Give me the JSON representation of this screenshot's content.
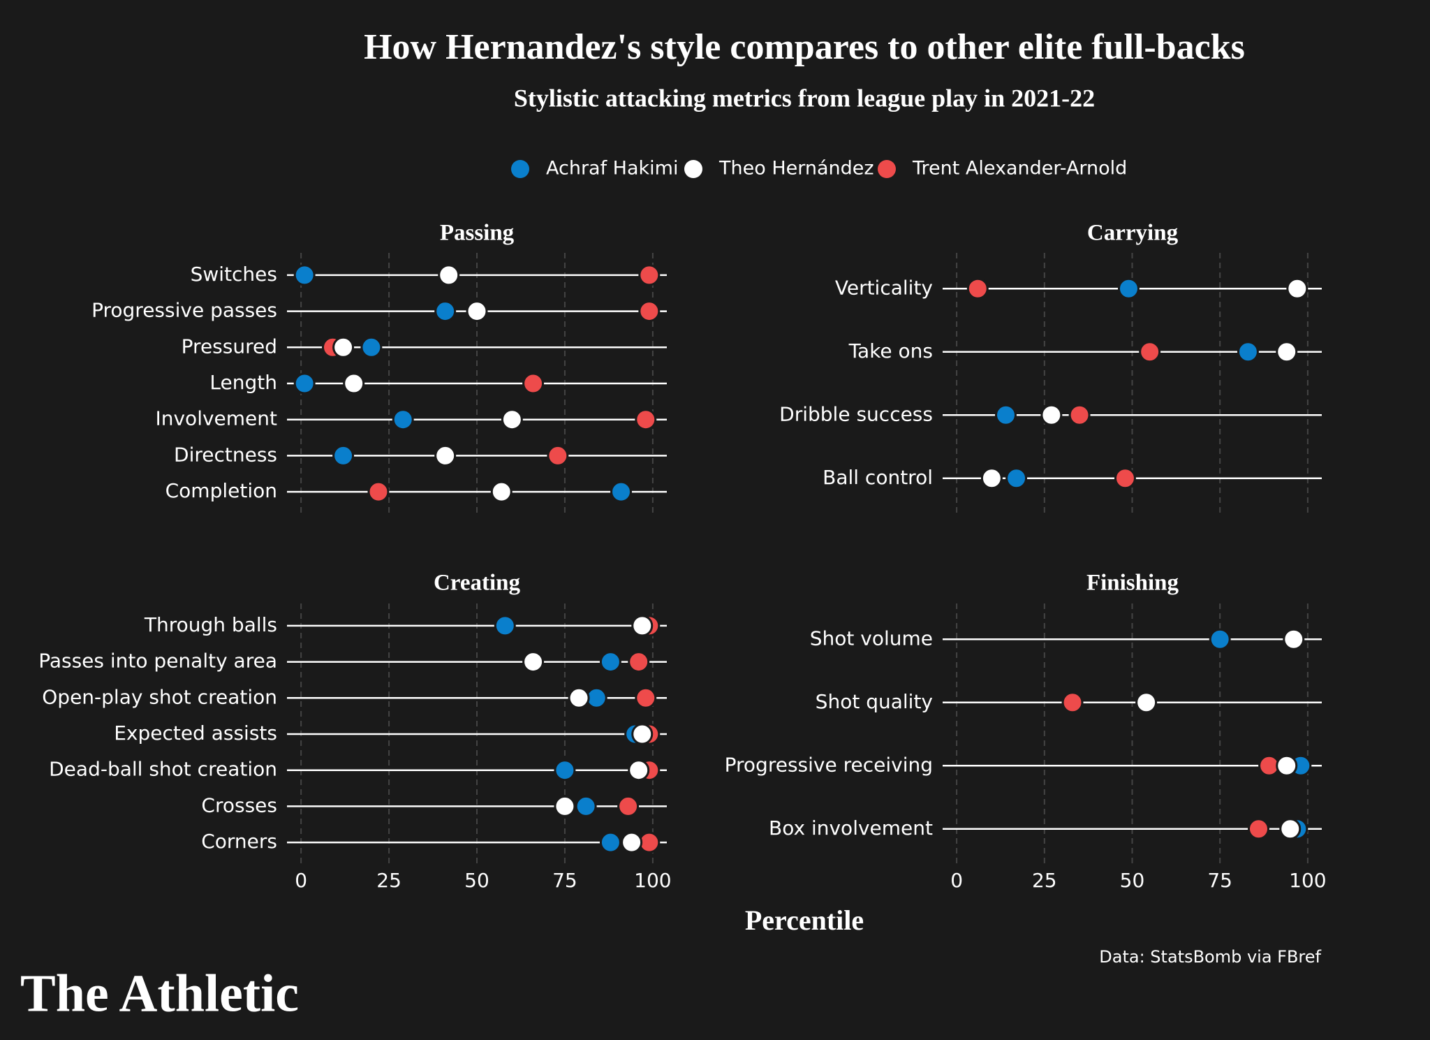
{
  "title": "How Hernandez's style compares to other elite full-backs",
  "subtitle": "Stylistic attacking metrics from league play in 2021-22",
  "x_label": "Percentile",
  "source": "Data: StatsBomb via FBref",
  "logo": "The Athletic",
  "chart_data": [
    {
      "type": "dot",
      "title": "Passing",
      "categories": [
        "Switches",
        "Progressive passes",
        "Pressured",
        "Length",
        "Involvement",
        "Directness",
        "Completion"
      ],
      "series": [
        {
          "name": "Achraf Hakimi",
          "color": "#0a7fcc",
          "values": [
            1,
            41,
            20,
            1,
            29,
            12,
            91
          ]
        },
        {
          "name": "Theo Hernández",
          "color": "#ffffff",
          "values": [
            42,
            50,
            12,
            15,
            60,
            41,
            57
          ]
        },
        {
          "name": "Trent Alexander-Arnold",
          "color": "#ee4b4b",
          "values": [
            99,
            99,
            9,
            66,
            98,
            73,
            22
          ]
        }
      ],
      "xlim": [
        -4,
        104
      ],
      "xticks": [
        0,
        25,
        50,
        75,
        100
      ]
    },
    {
      "type": "dot",
      "title": "Carrying",
      "categories": [
        "Verticality",
        "Take ons",
        "Dribble success",
        "Ball control"
      ],
      "series": [
        {
          "name": "Achraf Hakimi",
          "color": "#0a7fcc",
          "values": [
            49,
            83,
            14,
            17
          ]
        },
        {
          "name": "Theo Hernández",
          "color": "#ffffff",
          "values": [
            97,
            94,
            27,
            10
          ]
        },
        {
          "name": "Trent Alexander-Arnold",
          "color": "#ee4b4b",
          "values": [
            6,
            55,
            35,
            48
          ]
        }
      ],
      "xlim": [
        -4,
        104
      ],
      "xticks": [
        0,
        25,
        50,
        75,
        100
      ]
    },
    {
      "type": "dot",
      "title": "Creating",
      "categories": [
        "Through balls",
        "Passes into penalty area",
        "Open-play shot creation",
        "Expected assists",
        "Dead-ball shot creation",
        "Crosses",
        "Corners"
      ],
      "series": [
        {
          "name": "Achraf Hakimi",
          "color": "#0a7fcc",
          "values": [
            58,
            88,
            84,
            95,
            75,
            81,
            88
          ]
        },
        {
          "name": "Theo Hernández",
          "color": "#ffffff",
          "values": [
            97,
            66,
            79,
            97,
            96,
            75,
            94
          ]
        },
        {
          "name": "Trent Alexander-Arnold",
          "color": "#ee4b4b",
          "values": [
            99,
            96,
            98,
            99,
            99,
            93,
            99
          ]
        }
      ],
      "xlim": [
        -4,
        104
      ],
      "xticks": [
        0,
        25,
        50,
        75,
        100
      ]
    },
    {
      "type": "dot",
      "title": "Finishing",
      "categories": [
        "Shot volume",
        "Shot quality",
        "Progressive receiving",
        "Box involvement"
      ],
      "series": [
        {
          "name": "Achraf Hakimi",
          "color": "#0a7fcc",
          "values": [
            75,
            null,
            98,
            97
          ]
        },
        {
          "name": "Theo Hernández",
          "color": "#ffffff",
          "values": [
            96,
            54,
            94,
            95
          ]
        },
        {
          "name": "Trent Alexander-Arnold",
          "color": "#ee4b4b",
          "values": [
            null,
            33,
            89,
            86
          ]
        }
      ],
      "xlim": [
        -4,
        104
      ],
      "xticks": [
        0,
        25,
        50,
        75,
        100
      ]
    }
  ]
}
